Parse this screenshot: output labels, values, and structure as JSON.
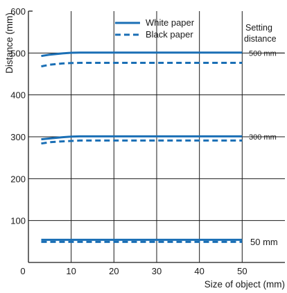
{
  "chart_data": {
    "type": "line",
    "xlabel": "Size of object (mm)",
    "ylabel": "Distance  (mm)",
    "xlim": [
      0,
      60
    ],
    "ylim": [
      0,
      600
    ],
    "x_ticks": [
      "0",
      "10",
      "20",
      "30",
      "40",
      "50"
    ],
    "y_ticks": [
      "100",
      "200",
      "300",
      "400",
      "500",
      "600"
    ],
    "grid": true,
    "legend_position": "top",
    "legend": [
      {
        "name": "White paper",
        "style": "solid"
      },
      {
        "name": "Black paper",
        "style": "dashed"
      }
    ],
    "setting_distance_label": [
      "Setting",
      "distance"
    ],
    "series": [
      {
        "name": "White paper",
        "group": "500 mm",
        "style": "solid",
        "color": "#1a6fb5",
        "points": [
          [
            3,
            493
          ],
          [
            5,
            496
          ],
          [
            8,
            499
          ],
          [
            10,
            500.5
          ],
          [
            12,
            501
          ],
          [
            50,
            501
          ]
        ]
      },
      {
        "name": "Black paper",
        "group": "500 mm",
        "style": "dashed",
        "color": "#1a6fb5",
        "points": [
          [
            3,
            468
          ],
          [
            5,
            472
          ],
          [
            8,
            475
          ],
          [
            10,
            476
          ],
          [
            12,
            476.5
          ],
          [
            50,
            476.5
          ]
        ]
      },
      {
        "name": "White paper",
        "group": "300 mm",
        "style": "solid",
        "color": "#1a6fb5",
        "points": [
          [
            3,
            294
          ],
          [
            5,
            296
          ],
          [
            8,
            299
          ],
          [
            10,
            300.5
          ],
          [
            12,
            301
          ],
          [
            50,
            301
          ]
        ]
      },
      {
        "name": "Black paper",
        "group": "300 mm",
        "style": "dashed",
        "color": "#1a6fb5",
        "points": [
          [
            3,
            284
          ],
          [
            5,
            287
          ],
          [
            8,
            289
          ],
          [
            10,
            290
          ],
          [
            12,
            291
          ],
          [
            50,
            291
          ]
        ]
      },
      {
        "name": "White paper",
        "group": "50 mm",
        "style": "solid",
        "color": "#1a6fb5",
        "points": [
          [
            3,
            54
          ],
          [
            50,
            54
          ]
        ]
      },
      {
        "name": "Black paper",
        "group": "50 mm",
        "style": "dashed",
        "color": "#1a6fb5",
        "points": [
          [
            3,
            49
          ],
          [
            50,
            49
          ]
        ]
      }
    ],
    "annotations": [
      {
        "text": "500 mm",
        "y": 500
      },
      {
        "text": "300 mm",
        "y": 300
      },
      {
        "text": "50 mm",
        "y": 50
      }
    ]
  }
}
